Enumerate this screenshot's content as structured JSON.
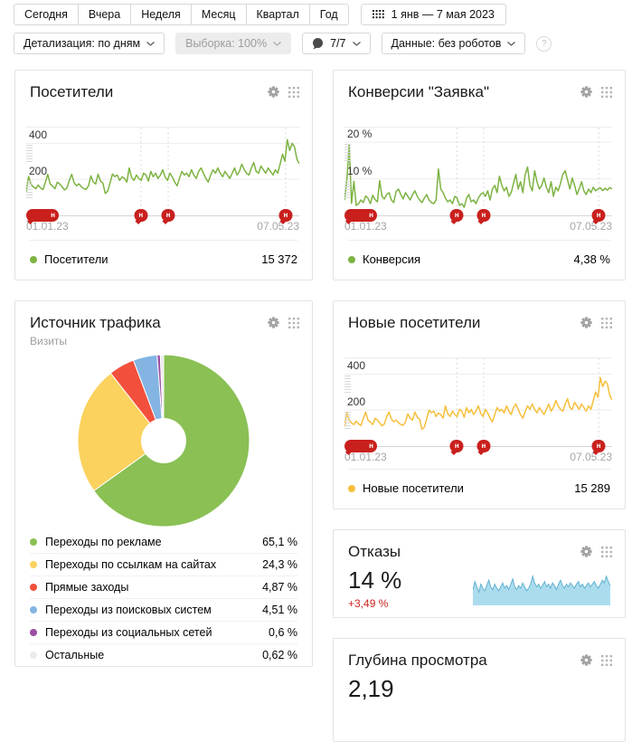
{
  "marker_label": "н",
  "toolbar": {
    "period_buttons": [
      {
        "label": "Сегодня"
      },
      {
        "label": "Вчера"
      },
      {
        "label": "Неделя"
      },
      {
        "label": "Месяц"
      },
      {
        "label": "Квартал"
      },
      {
        "label": "Год"
      }
    ],
    "date_range": "1 янв — 7 мая 2023",
    "detail": "Детализация: по дням",
    "sampling": "Выборка: 100%",
    "notes_count": "7/7",
    "data_mode": "Данные: без роботов",
    "help": "?"
  },
  "widgets": {
    "bounces": {
      "title": "Отказы",
      "value": "14 %",
      "delta": "+3,49 %"
    },
    "depth": {
      "title": "Глубина просмотра",
      "value": "2,19"
    }
  },
  "chart_data": [
    {
      "type": "line",
      "title": "Посетители",
      "total": "15 372",
      "x_start": "01.01.23",
      "x_end": "07.05.23",
      "ylim": [
        0,
        487
      ],
      "y_ticks": [
        {
          "label": "400",
          "value": 400
        },
        {
          "label": "200",
          "value": 200
        }
      ],
      "notes": [
        {
          "pos": 0,
          "wide": true
        },
        {
          "pos": 0.42
        },
        {
          "pos": 0.52
        },
        {
          "pos": 0.95
        }
      ],
      "series": [
        {
          "name": "Посетители",
          "color": "#7db342",
          "values": [
            130,
            216,
            172,
            158,
            148,
            168,
            152,
            143,
            183,
            228,
            174,
            162,
            148,
            184,
            174,
            158,
            141,
            152,
            194,
            228,
            180,
            164,
            175,
            159,
            149,
            144,
            164,
            219,
            185,
            174,
            228,
            190,
            179,
            122,
            134,
            180,
            229,
            215,
            224,
            194,
            214,
            205,
            185,
            263,
            210,
            194,
            224,
            205,
            194,
            234,
            224,
            190,
            244,
            214,
            234,
            205,
            224,
            253,
            214,
            194,
            234,
            214,
            185,
            164,
            205,
            244,
            224,
            234,
            214,
            253,
            224,
            205,
            244,
            263,
            234,
            205,
            185,
            224,
            253,
            234,
            263,
            234,
            214,
            244,
            224,
            205,
            234,
            263,
            224,
            244,
            284,
            253,
            234,
            224,
            263,
            293,
            244,
            234,
            274,
            253,
            234,
            263,
            244,
            224,
            253,
            234,
            284,
            340,
            300,
            420,
            360,
            400,
            380,
            312,
            286
          ]
        }
      ]
    },
    {
      "type": "line",
      "title": "Конверсии \"Заявка\"",
      "total": "4,38 %",
      "x_start": "01.01.23",
      "x_end": "07.05.23",
      "ylim": [
        0,
        24
      ],
      "y_ticks": [
        {
          "label": "20 %",
          "value": 20
        },
        {
          "label": "10 %",
          "value": 10
        }
      ],
      "notes": [
        {
          "pos": 0,
          "wide": true
        },
        {
          "pos": 0.42
        },
        {
          "pos": 0.52
        },
        {
          "pos": 0.95
        }
      ],
      "series": [
        {
          "name": "Конверсия",
          "color": "#7db342",
          "values": [
            4.2,
            9.6,
            19.2,
            3.3,
            9.3,
            2.7,
            3.2,
            4.2,
            3.5,
            5.3,
            4.7,
            3.2,
            5.5,
            4.3,
            3.7,
            9.5,
            5.2,
            4.5,
            5.7,
            6.2,
            4.2,
            3.5,
            6.5,
            7.2,
            5.7,
            4.5,
            6.2,
            5.2,
            4.2,
            5.7,
            6.7,
            5.2,
            4.2,
            3.5,
            4.7,
            5.7,
            4.2,
            3.5,
            3.2,
            4.2,
            12.7,
            7.2,
            6.2,
            4.7,
            3.7,
            4.2,
            3.2,
            5.2,
            4.7,
            2.7,
            3.2,
            2.2,
            4.7,
            5.7,
            3.7,
            4.2,
            3.2,
            4.7,
            5.7,
            6.2,
            5.2,
            6.7,
            4.2,
            7.2,
            8.2,
            6.2,
            10.7,
            8.2,
            6.7,
            7.7,
            5.2,
            6.2,
            8.7,
            11.2,
            7.2,
            9.2,
            6.2,
            11.2,
            13.2,
            8.2,
            6.7,
            12.2,
            9.2,
            7.2,
            8.2,
            10.2,
            7.7,
            6.2,
            9.2,
            5.2,
            7.7,
            6.7,
            8.7,
            11.2,
            12.2,
            9.7,
            7.2,
            10.2,
            8.2,
            5.7,
            7.2,
            9.2,
            6.7,
            5.7,
            7.2,
            6.2,
            7.7,
            6.7,
            7.2,
            7.5,
            6.8,
            7.4,
            6.9,
            7.6,
            7.2
          ]
        }
      ]
    },
    {
      "type": "pie",
      "title": "Источник трафика",
      "subtitle": "Визиты",
      "slices": [
        {
          "label": "Переходы по рекламе",
          "value": 65.1,
          "display": "65,1 %",
          "color": "#8ac054"
        },
        {
          "label": "Переходы по ссылкам на сайтах",
          "value": 24.3,
          "display": "24,3 %",
          "color": "#fbd25e"
        },
        {
          "label": "Прямые заходы",
          "value": 4.87,
          "display": "4,87 %",
          "color": "#f2503c"
        },
        {
          "label": "Переходы из поисковых систем",
          "value": 4.51,
          "display": "4,51 %",
          "color": "#84b4e2"
        },
        {
          "label": "Переходы из социальных сетей",
          "value": 0.6,
          "display": "0,6 %",
          "color": "#9b4ea3"
        },
        {
          "label": "Остальные",
          "value": 0.62,
          "display": "0,62 %",
          "color": "#ebebeb"
        }
      ]
    },
    {
      "type": "line",
      "title": "Новые посетители",
      "total": "15 289",
      "x_start": "01.01.23",
      "x_end": "07.05.23",
      "ylim": [
        0,
        487
      ],
      "y_ticks": [
        {
          "label": "400",
          "value": 400
        },
        {
          "label": "200",
          "value": 200
        }
      ],
      "notes": [
        {
          "pos": 0,
          "wide": true
        },
        {
          "pos": 0.42
        },
        {
          "pos": 0.52
        },
        {
          "pos": 0.95
        }
      ],
      "series": [
        {
          "name": "Новые посетители",
          "color": "#f6bf3c",
          "values": [
            108,
            186,
            143,
            129,
            119,
            139,
            123,
            114,
            153,
            189,
            144,
            133,
            119,
            154,
            145,
            129,
            112,
            123,
            164,
            189,
            150,
            135,
            145,
            130,
            120,
            115,
            135,
            179,
            155,
            144,
            189,
            160,
            149,
            93,
            105,
            150,
            199,
            185,
            194,
            164,
            184,
            175,
            155,
            223,
            180,
            164,
            194,
            175,
            164,
            204,
            194,
            160,
            214,
            184,
            204,
            175,
            194,
            223,
            184,
            164,
            204,
            184,
            155,
            134,
            175,
            214,
            194,
            204,
            184,
            223,
            194,
            175,
            214,
            233,
            204,
            175,
            155,
            194,
            223,
            204,
            233,
            204,
            184,
            214,
            194,
            175,
            204,
            233,
            194,
            214,
            253,
            223,
            204,
            194,
            233,
            263,
            214,
            204,
            243,
            223,
            204,
            233,
            214,
            194,
            223,
            204,
            253,
            300,
            270,
            380,
            330,
            360,
            345,
            282,
            256
          ]
        }
      ]
    },
    {
      "type": "area",
      "title": "Отказы",
      "ylim": [
        0,
        26
      ],
      "fill": "#abdcee",
      "line": "#62b1d0",
      "values": [
        12,
        18,
        14,
        10,
        16,
        13,
        11,
        15,
        19,
        14,
        12,
        16,
        13,
        11,
        14,
        17,
        13,
        15,
        12,
        16,
        20,
        14,
        12,
        15,
        13,
        17,
        14,
        11,
        13,
        16,
        22,
        17,
        14,
        16,
        13,
        15,
        18,
        14,
        16,
        13,
        17,
        15,
        12,
        16,
        19,
        15,
        13,
        16,
        14,
        17,
        15,
        13,
        16,
        18,
        14,
        16,
        13,
        15,
        17,
        14,
        16,
        18,
        15,
        13,
        16,
        19,
        17,
        22,
        18,
        15
      ]
    }
  ]
}
